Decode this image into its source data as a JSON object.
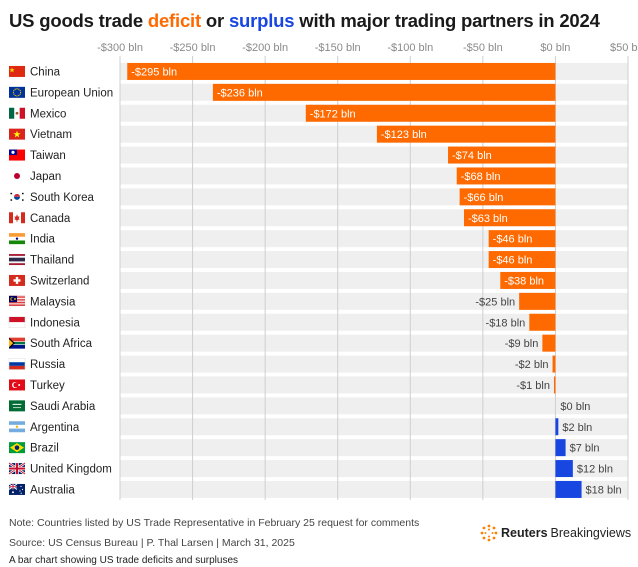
{
  "title": {
    "prefix": "US goods trade ",
    "deficit_word": "deficit",
    "middle": " or ",
    "surplus_word": "surplus",
    "suffix": " with major trading partners in 2024"
  },
  "colors": {
    "deficit": "#ff6a00",
    "surplus": "#1746e0",
    "row_band": "#efefef",
    "grid": "#cfcfcf"
  },
  "chart_data": {
    "type": "bar",
    "orientation": "horizontal",
    "unit": "bln",
    "xlim": [
      -300,
      50
    ],
    "ticks": [
      -300,
      -250,
      -200,
      -150,
      -100,
      -50,
      0,
      50
    ],
    "tick_labels": [
      "-$300 bln",
      "-$250 bln",
      "-$200 bln",
      "-$150 bln",
      "-$100 bln",
      "-$50 bln",
      "$0 bln",
      "$50 bln"
    ],
    "grid": true,
    "categories": [
      "China",
      "European Union",
      "Mexico",
      "Vietnam",
      "Taiwan",
      "Japan",
      "South Korea",
      "Canada",
      "India",
      "Thailand",
      "Switzerland",
      "Malaysia",
      "Indonesia",
      "South Africa",
      "Russia",
      "Turkey",
      "Saudi Arabia",
      "Argentina",
      "Brazil",
      "United Kingdom",
      "Australia"
    ],
    "values": [
      -295,
      -236,
      -172,
      -123,
      -74,
      -68,
      -66,
      -63,
      -46,
      -46,
      -38,
      -25,
      -18,
      -9,
      -2,
      -1,
      0,
      2,
      7,
      12,
      18
    ],
    "labels": [
      "-$295 bln",
      "-$236 bln",
      "-$172 bln",
      "-$123 bln",
      "-$74 bln",
      "-$68 bln",
      "-$66 bln",
      "-$63 bln",
      "-$46 bln",
      "-$46 bln",
      "-$38 bln",
      "-$25 bln",
      "-$18 bln",
      "-$9 bln",
      "-$2 bln",
      "-$1 bln",
      "$0 bln",
      "$2 bln",
      "$7 bln",
      "$12 bln",
      "$18 bln"
    ],
    "flags": [
      "china-flag-icon",
      "eu-flag-icon",
      "mexico-flag-icon",
      "vietnam-flag-icon",
      "taiwan-flag-icon",
      "japan-flag-icon",
      "south-korea-flag-icon",
      "canada-flag-icon",
      "india-flag-icon",
      "thailand-flag-icon",
      "switzerland-flag-icon",
      "malaysia-flag-icon",
      "indonesia-flag-icon",
      "south-africa-flag-icon",
      "russia-flag-icon",
      "turkey-flag-icon",
      "saudi-arabia-flag-icon",
      "argentina-flag-icon",
      "brazil-flag-icon",
      "uk-flag-icon",
      "australia-flag-icon"
    ]
  },
  "footer": {
    "note": "Note: Countries listed by US Trade Representative in February 25 request for comments",
    "source": "Source: US Census Bureau | P. Thal Larsen | March 31, 2025",
    "caption": "A bar chart showing US trade deficits and surpluses",
    "brand_bold": "Reuters",
    "brand_light": "Breakingviews",
    "brand_icon": "reuters-logo-icon"
  }
}
